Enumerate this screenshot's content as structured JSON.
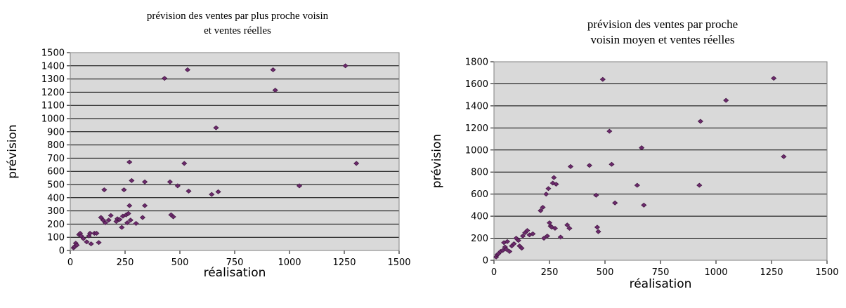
{
  "chart_data": [
    {
      "type": "scatter",
      "title_lines": [
        "prévision des ventes par plus proche voisin",
        "et ventes réelles"
      ],
      "xlabel": "réalisation",
      "ylabel": "prévision",
      "xlim": [
        0,
        1500
      ],
      "ylim": [
        0,
        1500
      ],
      "xticks": [
        0,
        250,
        500,
        750,
        1000,
        1250,
        1500
      ],
      "yticks": [
        0,
        100,
        200,
        300,
        400,
        500,
        600,
        700,
        800,
        900,
        1000,
        1100,
        1200,
        1300,
        1400,
        1500
      ],
      "grid": "horizontal",
      "plot_background": "#d9d9d9",
      "marker_color": "#6b2a6b",
      "points": [
        [
          15,
          20
        ],
        [
          20,
          30
        ],
        [
          25,
          55
        ],
        [
          30,
          40
        ],
        [
          40,
          120
        ],
        [
          45,
          130
        ],
        [
          50,
          110
        ],
        [
          60,
          90
        ],
        [
          75,
          65
        ],
        [
          85,
          110
        ],
        [
          90,
          130
        ],
        [
          95,
          50
        ],
        [
          110,
          130
        ],
        [
          120,
          130
        ],
        [
          130,
          60
        ],
        [
          140,
          250
        ],
        [
          150,
          230
        ],
        [
          155,
          460
        ],
        [
          160,
          210
        ],
        [
          175,
          230
        ],
        [
          185,
          265
        ],
        [
          210,
          220
        ],
        [
          215,
          240
        ],
        [
          225,
          235
        ],
        [
          235,
          175
        ],
        [
          240,
          260
        ],
        [
          245,
          460
        ],
        [
          255,
          270
        ],
        [
          260,
          210
        ],
        [
          265,
          280
        ],
        [
          270,
          340
        ],
        [
          270,
          670
        ],
        [
          275,
          230
        ],
        [
          280,
          530
        ],
        [
          300,
          205
        ],
        [
          330,
          250
        ],
        [
          340,
          340
        ],
        [
          340,
          520
        ],
        [
          430,
          1305
        ],
        [
          455,
          520
        ],
        [
          460,
          270
        ],
        [
          470,
          255
        ],
        [
          490,
          490
        ],
        [
          520,
          660
        ],
        [
          535,
          1370
        ],
        [
          540,
          450
        ],
        [
          645,
          425
        ],
        [
          665,
          930
        ],
        [
          675,
          445
        ],
        [
          925,
          1370
        ],
        [
          935,
          1215
        ],
        [
          1045,
          490
        ],
        [
          1255,
          1400
        ],
        [
          1305,
          660
        ]
      ]
    },
    {
      "type": "scatter",
      "title_lines": [
        "prévision des ventes par proche",
        "voisin moyen et ventes réelles"
      ],
      "xlabel": "réalisation",
      "ylabel": "prévision",
      "xlim": [
        0,
        1500
      ],
      "ylim": [
        0,
        1800
      ],
      "xticks": [
        0,
        250,
        500,
        750,
        1000,
        1250,
        1500
      ],
      "yticks": [
        0,
        200,
        400,
        600,
        800,
        1000,
        1200,
        1400,
        1600,
        1800
      ],
      "grid": "horizontal",
      "plot_background": "#d9d9d9",
      "marker_color": "#6b2a6b",
      "points": [
        [
          10,
          30
        ],
        [
          15,
          50
        ],
        [
          20,
          60
        ],
        [
          30,
          80
        ],
        [
          40,
          90
        ],
        [
          45,
          160
        ],
        [
          50,
          120
        ],
        [
          55,
          100
        ],
        [
          60,
          170
        ],
        [
          70,
          80
        ],
        [
          80,
          130
        ],
        [
          90,
          150
        ],
        [
          100,
          200
        ],
        [
          110,
          180
        ],
        [
          115,
          130
        ],
        [
          125,
          110
        ],
        [
          130,
          220
        ],
        [
          140,
          250
        ],
        [
          150,
          270
        ],
        [
          160,
          230
        ],
        [
          175,
          240
        ],
        [
          210,
          450
        ],
        [
          220,
          480
        ],
        [
          225,
          200
        ],
        [
          235,
          600
        ],
        [
          240,
          220
        ],
        [
          245,
          650
        ],
        [
          250,
          340
        ],
        [
          255,
          310
        ],
        [
          260,
          300
        ],
        [
          265,
          700
        ],
        [
          270,
          750
        ],
        [
          275,
          290
        ],
        [
          280,
          690
        ],
        [
          300,
          210
        ],
        [
          330,
          320
        ],
        [
          340,
          290
        ],
        [
          345,
          850
        ],
        [
          430,
          860
        ],
        [
          460,
          590
        ],
        [
          465,
          300
        ],
        [
          470,
          260
        ],
        [
          490,
          1640
        ],
        [
          520,
          1170
        ],
        [
          530,
          870
        ],
        [
          545,
          520
        ],
        [
          645,
          680
        ],
        [
          665,
          1020
        ],
        [
          675,
          500
        ],
        [
          925,
          680
        ],
        [
          930,
          1260
        ],
        [
          1045,
          1450
        ],
        [
          1260,
          1650
        ],
        [
          1305,
          940
        ]
      ]
    }
  ]
}
